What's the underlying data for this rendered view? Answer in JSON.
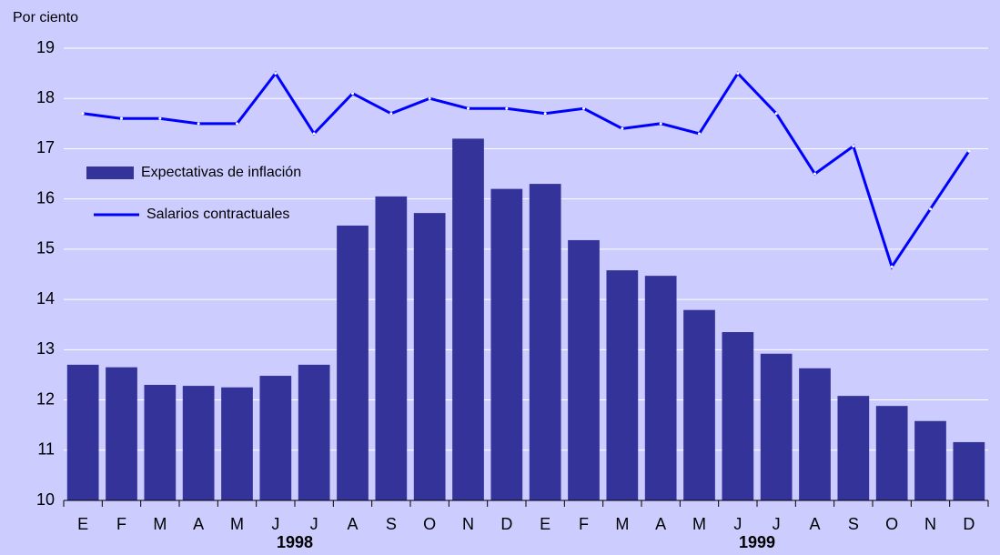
{
  "chart_data": {
    "type": "bar_line",
    "y_axis_label": "Por ciento",
    "categories": [
      "E",
      "F",
      "M",
      "A",
      "M",
      "J",
      "J",
      "A",
      "S",
      "O",
      "N",
      "D",
      "E",
      "F",
      "M",
      "A",
      "M",
      "J",
      "J",
      "A",
      "S",
      "O",
      "N",
      "D"
    ],
    "year_labels": [
      "1998",
      "1999"
    ],
    "series": [
      {
        "name": "Expectativas de inflación",
        "type": "bar",
        "color": "#333399",
        "values": [
          12.7,
          12.65,
          12.3,
          12.28,
          12.25,
          12.48,
          12.7,
          15.47,
          16.05,
          15.72,
          17.2,
          16.2,
          16.3,
          15.18,
          14.58,
          14.47,
          13.79,
          13.35,
          12.92,
          12.63,
          12.08,
          11.88,
          11.58,
          11.16
        ]
      },
      {
        "name": "Salarios contractuales",
        "type": "line",
        "color": "#0000ff",
        "values": [
          17.7,
          17.6,
          17.6,
          17.5,
          17.5,
          18.5,
          17.3,
          18.1,
          17.7,
          18.0,
          17.8,
          17.8,
          17.7,
          17.8,
          17.4,
          17.5,
          17.3,
          18.5,
          17.7,
          16.5,
          17.05,
          14.65,
          15.8,
          16.95
        ]
      }
    ],
    "ylim": [
      10,
      19
    ],
    "yticks": [
      10,
      11,
      12,
      13,
      14,
      15,
      16,
      17,
      18,
      19
    ],
    "grid": true,
    "legend_position": "left"
  }
}
